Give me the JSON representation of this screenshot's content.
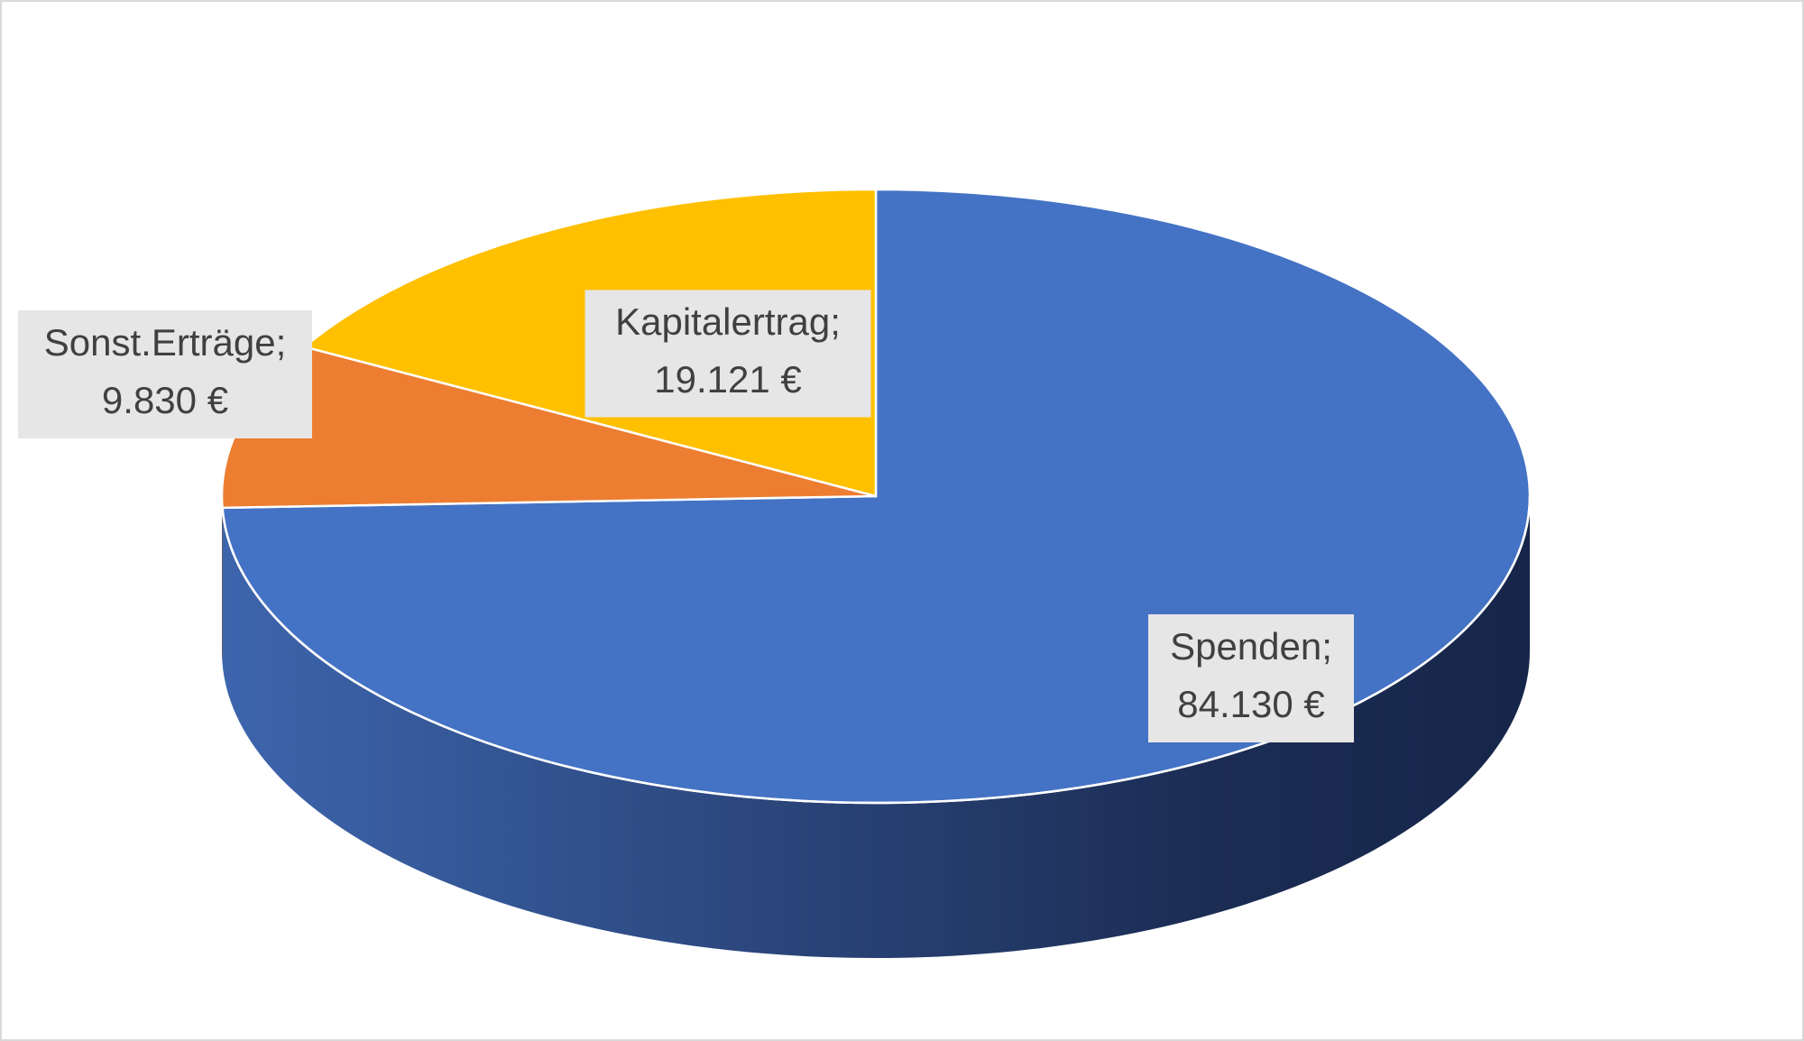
{
  "chart_data": {
    "type": "pie",
    "categories": [
      "Spenden;",
      "Sonst.Erträge;",
      "Kapitalertrag;"
    ],
    "values": [
      84130,
      9830,
      19121
    ],
    "value_labels": [
      "84.130 €",
      "9.830 €",
      "19.121 €"
    ],
    "colors": [
      "#4472c4",
      "#ed7d31",
      "#ffc000"
    ]
  }
}
